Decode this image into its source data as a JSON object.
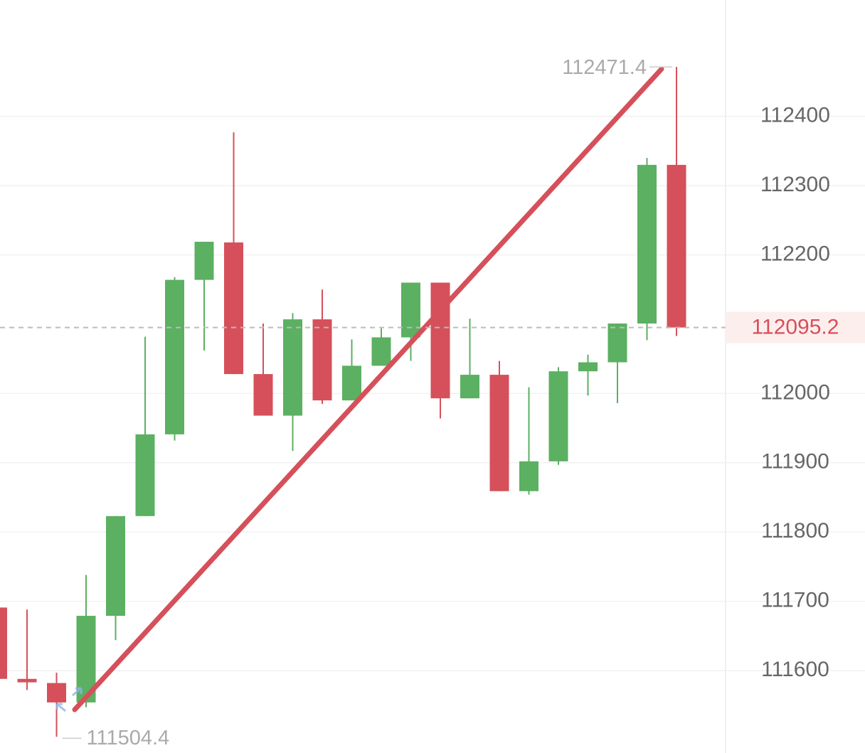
{
  "chart_data": {
    "type": "candlestick",
    "categories": [
      null,
      null,
      null,
      null,
      null,
      null,
      null,
      null,
      null,
      null,
      null,
      null,
      null,
      null,
      null,
      null,
      null,
      null,
      null,
      null,
      null,
      null,
      null,
      null
    ],
    "open": [
      111691,
      111588,
      111582,
      111554,
      111679,
      111823,
      111941,
      112164,
      112218,
      112028,
      111968,
      112107,
      111990,
      112040,
      112081,
      112160,
      111993,
      112027,
      111859,
      111902,
      112032,
      112045,
      112101,
      112330
    ],
    "high": [
      111691,
      111688,
      111597,
      111738,
      111823,
      112082,
      112168,
      112219,
      112377,
      112101,
      112116,
      112150,
      112078,
      112094,
      112160,
      112160,
      112108,
      112047,
      112009,
      112038,
      112056,
      112101,
      112340,
      112471.4
    ],
    "low": [
      111588,
      111572,
      111504.4,
      111547,
      111644,
      111823,
      111932,
      112062,
      112028,
      111968,
      111917,
      111985,
      111990,
      112040,
      112047,
      111964,
      111993,
      111859,
      111854,
      111897,
      111997,
      111986,
      112077,
      112083
    ],
    "close": [
      111588,
      111583,
      111554,
      111679,
      111823,
      111941,
      112164,
      112219,
      112028,
      111968,
      112107,
      111990,
      112040,
      112081,
      112160,
      111993,
      112027,
      111859,
      111902,
      112032,
      112045,
      112101,
      112330,
      112095.2
    ],
    "up_color": "#5bb061",
    "down_color": "#d5505a",
    "ylim": [
      111481,
      112568
    ],
    "yticks": [
      111600,
      111700,
      111800,
      111900,
      112000,
      112200,
      112300,
      112400
    ],
    "grid": true
  }
}
